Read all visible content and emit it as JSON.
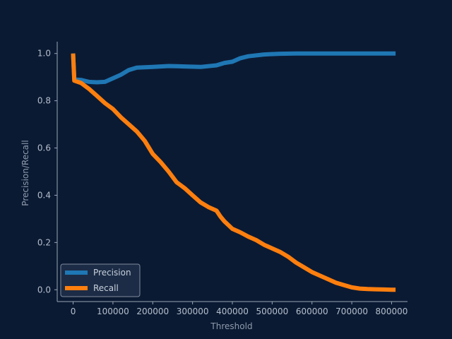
{
  "chart_data": {
    "type": "line",
    "title": "",
    "xlabel": "Threshold",
    "ylabel": "Precision/Recall",
    "xlim": [
      -40000,
      840000
    ],
    "ylim": [
      -0.05,
      1.05
    ],
    "xticks": [
      0,
      100000,
      200000,
      300000,
      400000,
      500000,
      600000,
      700000,
      800000
    ],
    "xtick_labels": [
      "0",
      "100000",
      "200000",
      "300000",
      "400000",
      "500000",
      "600000",
      "700000",
      "800000"
    ],
    "yticks": [
      0.0,
      0.2,
      0.4,
      0.6,
      0.8,
      1.0
    ],
    "ytick_labels": [
      "0.0",
      "0.2",
      "0.4",
      "0.6",
      "0.8",
      "1.0"
    ],
    "grid": false,
    "legend_position": "lower-left",
    "series": [
      {
        "name": "Precision",
        "color": "#1f77b4",
        "x": [
          0,
          3000,
          20000,
          40000,
          60000,
          80000,
          100000,
          120000,
          140000,
          160000,
          200000,
          240000,
          280000,
          320000,
          360000,
          380000,
          400000,
          420000,
          440000,
          480000,
          520000,
          560000,
          600000,
          700000,
          810000
        ],
        "y": [
          1.0,
          0.89,
          0.888,
          0.88,
          0.878,
          0.88,
          0.895,
          0.91,
          0.93,
          0.94,
          0.943,
          0.947,
          0.945,
          0.943,
          0.95,
          0.96,
          0.965,
          0.98,
          0.988,
          0.996,
          0.999,
          1.0,
          1.0,
          1.0,
          1.0
        ]
      },
      {
        "name": "Recall",
        "color": "#ff7f0e",
        "x": [
          0,
          3000,
          20000,
          40000,
          60000,
          80000,
          100000,
          120000,
          140000,
          160000,
          180000,
          200000,
          220000,
          240000,
          260000,
          280000,
          300000,
          320000,
          340000,
          360000,
          370000,
          380000,
          400000,
          420000,
          440000,
          460000,
          480000,
          500000,
          520000,
          540000,
          560000,
          580000,
          600000,
          620000,
          640000,
          660000,
          680000,
          700000,
          720000,
          740000,
          760000,
          780000,
          800000,
          810000
        ],
        "y": [
          1.0,
          0.885,
          0.875,
          0.85,
          0.82,
          0.79,
          0.765,
          0.73,
          0.7,
          0.67,
          0.63,
          0.575,
          0.54,
          0.5,
          0.455,
          0.43,
          0.4,
          0.37,
          0.35,
          0.335,
          0.31,
          0.29,
          0.258,
          0.243,
          0.225,
          0.21,
          0.19,
          0.175,
          0.16,
          0.14,
          0.115,
          0.095,
          0.075,
          0.06,
          0.045,
          0.03,
          0.02,
          0.01,
          0.005,
          0.003,
          0.002,
          0.001,
          0.0,
          0.0
        ]
      }
    ]
  }
}
